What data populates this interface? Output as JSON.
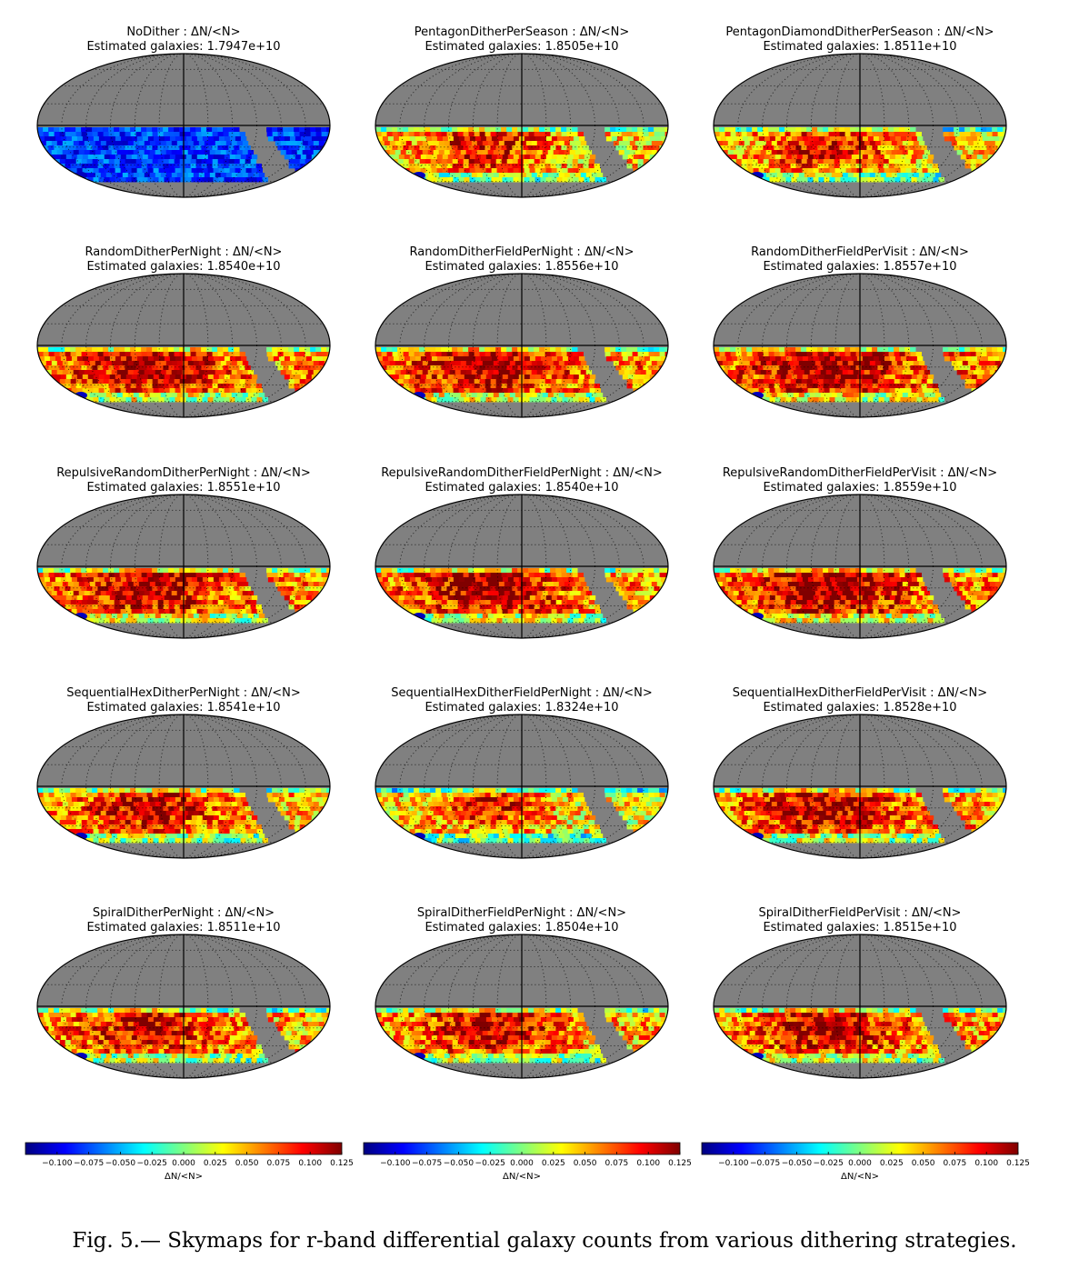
{
  "figure": {
    "caption": "Fig. 5.— Skymaps for r-band differential galaxy counts from various dithering strategies."
  },
  "colors": {
    "background_gray": "#808080",
    "colormap": "jet",
    "jet_stops": [
      "#00007f",
      "#0000ff",
      "#007fff",
      "#00ffff",
      "#7fff7f",
      "#ffff00",
      "#ff7f00",
      "#ff0000",
      "#7f0000"
    ]
  },
  "colorbar": {
    "label": "ΔN/<N>",
    "range": [
      -0.125,
      0.125
    ],
    "ticks": [
      "−0.100",
      "−0.075",
      "−0.050",
      "−0.025",
      "0.000",
      "0.025",
      "0.050",
      "0.075",
      "0.100",
      "0.125"
    ],
    "tick_values": [
      -0.1,
      -0.075,
      -0.05,
      -0.025,
      0.0,
      0.025,
      0.05,
      0.075,
      0.1,
      0.125
    ],
    "count": 3
  },
  "chart_data": [
    {
      "type": "heatmap",
      "projection": "mollweide",
      "title": "NoDither : ΔN/<N>",
      "subtitle": "Estimated galaxies: 1.7947e+10",
      "estimated_galaxies": 17947000000.0,
      "mean_delta": -0.08
    },
    {
      "type": "heatmap",
      "projection": "mollweide",
      "title": "PentagonDitherPerSeason : ΔN/<N>",
      "subtitle": "Estimated galaxies: 1.8505e+10",
      "estimated_galaxies": 18505000000.0,
      "mean_delta": 0.04
    },
    {
      "type": "heatmap",
      "projection": "mollweide",
      "title": "PentagonDiamondDitherPerSeason : ΔN/<N>",
      "subtitle": "Estimated galaxies: 1.8511e+10",
      "estimated_galaxies": 18511000000.0,
      "mean_delta": 0.04
    },
    {
      "type": "heatmap",
      "projection": "mollweide",
      "title": "RandomDitherPerNight : ΔN/<N>",
      "subtitle": "Estimated galaxies: 1.8540e+10",
      "estimated_galaxies": 18540000000.0,
      "mean_delta": 0.06
    },
    {
      "type": "heatmap",
      "projection": "mollweide",
      "title": "RandomDitherFieldPerNight : ΔN/<N>",
      "subtitle": "Estimated galaxies: 1.8556e+10",
      "estimated_galaxies": 18556000000.0,
      "mean_delta": 0.06
    },
    {
      "type": "heatmap",
      "projection": "mollweide",
      "title": "RandomDitherFieldPerVisit : ΔN/<N>",
      "subtitle": "Estimated galaxies: 1.8557e+10",
      "estimated_galaxies": 18557000000.0,
      "mean_delta": 0.065
    },
    {
      "type": "heatmap",
      "projection": "mollweide",
      "title": "RepulsiveRandomDitherPerNight : ΔN/<N>",
      "subtitle": "Estimated galaxies: 1.8551e+10",
      "estimated_galaxies": 18551000000.0,
      "mean_delta": 0.06
    },
    {
      "type": "heatmap",
      "projection": "mollweide",
      "title": "RepulsiveRandomDitherFieldPerNight : ΔN/<N>",
      "subtitle": "Estimated galaxies: 1.8540e+10",
      "estimated_galaxies": 18540000000.0,
      "mean_delta": 0.06
    },
    {
      "type": "heatmap",
      "projection": "mollweide",
      "title": "RepulsiveRandomDitherFieldPerVisit : ΔN/<N>",
      "subtitle": "Estimated galaxies: 1.8559e+10",
      "estimated_galaxies": 18559000000.0,
      "mean_delta": 0.065
    },
    {
      "type": "heatmap",
      "projection": "mollweide",
      "title": "SequentialHexDitherPerNight : ΔN/<N>",
      "subtitle": "Estimated galaxies: 1.8541e+10",
      "estimated_galaxies": 18541000000.0,
      "mean_delta": 0.05
    },
    {
      "type": "heatmap",
      "projection": "mollweide",
      "title": "SequentialHexDitherFieldPerNight : ΔN/<N>",
      "subtitle": "Estimated galaxies: 1.8324e+10",
      "estimated_galaxies": 18324000000.0,
      "mean_delta": 0.03
    },
    {
      "type": "heatmap",
      "projection": "mollweide",
      "title": "SequentialHexDitherFieldPerVisit : ΔN/<N>",
      "subtitle": "Estimated galaxies: 1.8528e+10",
      "estimated_galaxies": 18528000000.0,
      "mean_delta": 0.055
    },
    {
      "type": "heatmap",
      "projection": "mollweide",
      "title": "SpiralDitherPerNight : ΔN/<N>",
      "subtitle": "Estimated galaxies: 1.8511e+10",
      "estimated_galaxies": 18511000000.0,
      "mean_delta": 0.05
    },
    {
      "type": "heatmap",
      "projection": "mollweide",
      "title": "SpiralDitherFieldPerNight : ΔN/<N>",
      "subtitle": "Estimated galaxies: 1.8504e+10",
      "estimated_galaxies": 18504000000.0,
      "mean_delta": 0.05
    },
    {
      "type": "heatmap",
      "projection": "mollweide",
      "title": "SpiralDitherFieldPerVisit : ΔN/<N>",
      "subtitle": "Estimated galaxies: 1.8515e+10",
      "estimated_galaxies": 18515000000.0,
      "mean_delta": 0.055
    }
  ]
}
